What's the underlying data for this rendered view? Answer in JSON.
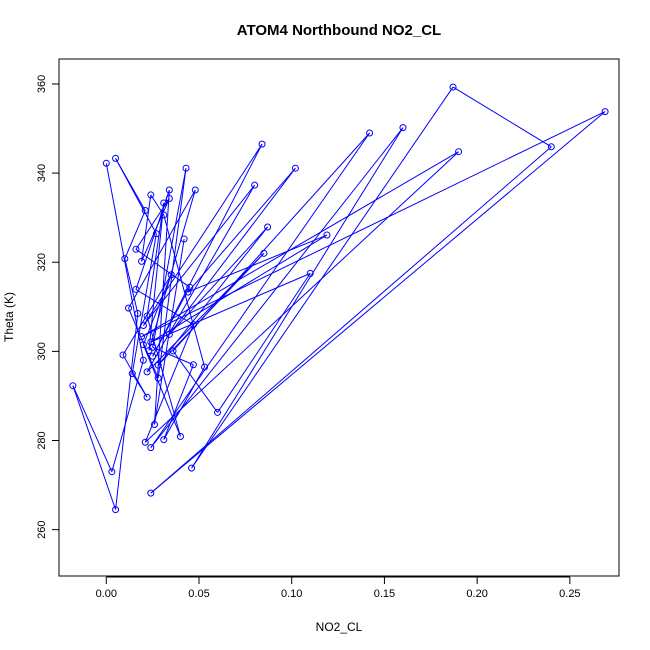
{
  "chart_data": {
    "type": "line",
    "title": "ATOM4 Northbound NO2_CL",
    "xlabel": "NO2_CL",
    "ylabel": "Theta (K)",
    "xlim": [
      -0.0255,
      0.2765
    ],
    "ylim": [
      249.6,
      365.6
    ],
    "x_ticks": [
      0.0,
      0.05,
      0.1,
      0.15,
      0.2,
      0.25
    ],
    "x_tick_labels": [
      "0.00",
      "0.05",
      "0.10",
      "0.15",
      "0.20",
      "0.25"
    ],
    "y_ticks": [
      260,
      280,
      300,
      320,
      340,
      360
    ],
    "y_tick_labels": [
      "260",
      "280",
      "300",
      "320",
      "340",
      "360"
    ],
    "grid": false,
    "markers": "open-circle",
    "colors": {
      "series": "#0000ff",
      "axis": "#000000",
      "background": "#ffffff"
    },
    "series": [
      {
        "points": [
          [
            0.0,
            342.2
          ],
          [
            0.02,
            298.0
          ],
          [
            0.003,
            273.0
          ],
          [
            -0.018,
            292.3
          ],
          [
            0.005,
            264.5
          ],
          [
            0.017,
            308.5
          ],
          [
            0.01,
            320.8
          ],
          [
            0.021,
            331.6
          ],
          [
            0.005,
            343.3
          ],
          [
            0.027,
            326.4
          ],
          [
            0.014,
            295.0
          ],
          [
            0.022,
            289.7
          ],
          [
            0.009,
            299.2
          ],
          [
            0.035,
            317.2
          ],
          [
            0.02,
            301.5
          ],
          [
            0.04,
            280.9
          ],
          [
            0.022,
            307.9
          ],
          [
            0.031,
            333.3
          ],
          [
            0.023,
            300.2
          ],
          [
            0.048,
            336.2
          ],
          [
            0.012,
            309.7
          ],
          [
            0.028,
            294.0
          ],
          [
            0.043,
            341.1
          ],
          [
            0.025,
            300.9
          ],
          [
            0.047,
            297.0
          ],
          [
            0.031,
            280.2
          ],
          [
            0.053,
            296.5
          ],
          [
            0.031,
            330.6
          ],
          [
            0.024,
            335.1
          ],
          [
            0.019,
            320.2
          ],
          [
            0.034,
            334.3
          ],
          [
            0.016,
            322.9
          ],
          [
            0.045,
            314.4
          ],
          [
            0.025,
            298.9
          ],
          [
            0.084,
            346.5
          ],
          [
            0.02,
            305.8
          ],
          [
            0.08,
            337.3
          ],
          [
            0.022,
            295.4
          ],
          [
            0.085,
            322.0
          ],
          [
            0.028,
            296.9
          ],
          [
            0.087,
            327.9
          ],
          [
            0.034,
            303.8
          ],
          [
            0.102,
            341.1
          ],
          [
            0.044,
            313.3
          ],
          [
            0.119,
            326.1
          ],
          [
            0.024,
            302.1
          ],
          [
            0.11,
            317.5
          ],
          [
            0.06,
            286.3
          ],
          [
            0.036,
            300.1
          ],
          [
            0.142,
            349.0
          ],
          [
            0.024,
            278.4
          ],
          [
            0.16,
            350.2
          ],
          [
            0.046,
            273.8
          ],
          [
            0.187,
            359.3
          ],
          [
            0.24,
            345.9
          ],
          [
            0.024,
            268.2
          ],
          [
            0.269,
            353.8
          ],
          [
            0.019,
            303.3
          ],
          [
            0.19,
            344.8
          ],
          [
            0.021,
            279.6
          ],
          [
            0.047,
            306.0
          ],
          [
            0.016,
            313.9
          ],
          [
            0.034,
            336.2
          ],
          [
            0.026,
            283.6
          ],
          [
            0.042,
            325.2
          ]
        ]
      }
    ]
  }
}
